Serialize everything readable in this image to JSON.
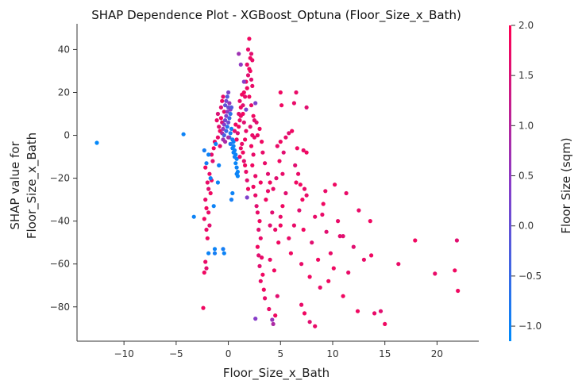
{
  "chart_data": {
    "type": "scatter",
    "title": "SHAP Dependence Plot - XGBoost_Optuna (Floor_Size_x_Bath)",
    "xlabel": "Floor_Size_x_Bath",
    "ylabel": [
      "SHAP value for",
      "Floor_Size_x_Bath"
    ],
    "xlim": [
      -14.5,
      24
    ],
    "ylim": [
      -96,
      52
    ],
    "xticks": [
      -10,
      -5,
      0,
      5,
      10,
      15,
      20
    ],
    "yticks": [
      -80,
      -60,
      -40,
      -20,
      0,
      20,
      40
    ],
    "colorbar": {
      "label": "Floor Size (sqm)",
      "min": -1.15,
      "max": 2.0,
      "ticks": [
        2.0,
        1.5,
        1.0,
        0.5,
        0.0,
        -0.5,
        -1.0
      ],
      "tick_labels": [
        "2.0",
        "1.5",
        "1.0",
        "0.5",
        "0.0",
        "−0.5",
        "−1.0"
      ],
      "low_color": "#008bfb",
      "high_color": "#ff0052"
    },
    "points": [
      [
        -12.6,
        -3.5,
        -1.1
      ],
      [
        -4.3,
        0.5,
        -1.0
      ],
      [
        -3.3,
        -38,
        -1.0
      ],
      [
        -1.9,
        -55,
        -1.0
      ],
      [
        -2.4,
        -80.5,
        1.8
      ],
      [
        -2.3,
        -64,
        1.8
      ],
      [
        -2.1,
        -62,
        1.6
      ],
      [
        -2.2,
        -59,
        1.7
      ],
      [
        -2.0,
        -48,
        1.8
      ],
      [
        -2.1,
        -44,
        1.7
      ],
      [
        -1.8,
        -42,
        1.6
      ],
      [
        -2.3,
        -39,
        1.8
      ],
      [
        -1.9,
        -36,
        1.7
      ],
      [
        -2.1,
        -34,
        1.8
      ],
      [
        -2.2,
        -30,
        1.7
      ],
      [
        -1.7,
        -27,
        1.8
      ],
      [
        -1.9,
        -25,
        1.6
      ],
      [
        -2.0,
        -22,
        1.7
      ],
      [
        -1.6,
        -21,
        1.8
      ],
      [
        -1.8,
        -18,
        1.7
      ],
      [
        -2.2,
        -15,
        1.8
      ],
      [
        -1.5,
        -12,
        1.6
      ],
      [
        -1.6,
        -9,
        1.7
      ],
      [
        -1.4,
        -6,
        1.8
      ],
      [
        -1.3,
        -3,
        1.7
      ],
      [
        -2.1,
        -13,
        -0.9
      ],
      [
        -1.9,
        -9,
        -1.0
      ],
      [
        -2.3,
        -7,
        -0.9
      ],
      [
        -1.2,
        -4,
        -1.0
      ],
      [
        -1.7,
        -20,
        -0.95
      ],
      [
        -1.4,
        -33,
        -1.0
      ],
      [
        -1.3,
        -53,
        -1.0
      ],
      [
        -1.3,
        -55,
        -0.9
      ],
      [
        -1.0,
        -22,
        -1.0
      ],
      [
        -0.9,
        -14,
        -1.0
      ],
      [
        -1.0,
        10,
        1.5
      ],
      [
        -1.1,
        7,
        1.7
      ],
      [
        -0.9,
        4,
        1.6
      ],
      [
        -0.8,
        2,
        1.8
      ],
      [
        -1.0,
        -1,
        1.7
      ],
      [
        -0.7,
        13,
        1.6
      ],
      [
        -0.6,
        16,
        1.8
      ],
      [
        -0.5,
        18,
        1.7
      ],
      [
        -0.6,
        6,
        1.5
      ],
      [
        -0.8,
        -5,
        1.6
      ],
      [
        -0.7,
        8,
        1.8
      ],
      [
        -0.4,
        11,
        1.7
      ],
      [
        -0.6,
        1,
        0.9
      ],
      [
        -0.5,
        3,
        0.6
      ],
      [
        -0.4,
        5,
        0.4
      ],
      [
        -0.3,
        7,
        0.2
      ],
      [
        -0.2,
        9,
        0.3
      ],
      [
        -0.1,
        11,
        0.5
      ],
      [
        0.0,
        13,
        0.1
      ],
      [
        -0.3,
        14,
        0.0
      ],
      [
        -0.2,
        16,
        0.2
      ],
      [
        -0.1,
        18,
        -0.2
      ],
      [
        0.0,
        20,
        0.3
      ],
      [
        0.1,
        15,
        0.6
      ],
      [
        0.2,
        12,
        0.4
      ],
      [
        0.0,
        6,
        0.1
      ],
      [
        -0.4,
        0,
        -0.3
      ],
      [
        -0.2,
        2,
        -0.5
      ],
      [
        -0.1,
        4,
        -0.7
      ],
      [
        0.1,
        8,
        -0.4
      ],
      [
        0.2,
        10,
        -0.6
      ],
      [
        0.3,
        13,
        -0.2
      ],
      [
        0.1,
        -1,
        -0.8
      ],
      [
        0.2,
        1,
        -0.9
      ],
      [
        0.3,
        3,
        -1.0
      ],
      [
        0.4,
        -2,
        -0.9
      ],
      [
        0.2,
        -4,
        -0.8
      ],
      [
        0.5,
        -3,
        -1.0
      ],
      [
        -0.5,
        -2,
        0.7
      ],
      [
        -0.3,
        -3,
        0.9
      ],
      [
        0.0,
        -1,
        0.8
      ],
      [
        0.5,
        -5,
        -1.0
      ],
      [
        0.6,
        -7,
        -1.0
      ],
      [
        0.7,
        -9,
        -1.05
      ],
      [
        0.8,
        -11,
        -1.0
      ],
      [
        0.7,
        -13,
        -1.05
      ],
      [
        0.8,
        -15,
        -1.0
      ],
      [
        0.9,
        -17,
        -1.05
      ],
      [
        0.8,
        -18,
        -1.0
      ],
      [
        0.6,
        -10,
        -0.95
      ],
      [
        0.5,
        -8,
        -1.0
      ],
      [
        0.4,
        -6,
        -1.0
      ],
      [
        0.9,
        -19,
        -1.05
      ],
      [
        0.3,
        -30,
        -0.9
      ],
      [
        0.4,
        -27,
        -1.0
      ],
      [
        -0.4,
        -55,
        -1.0
      ],
      [
        -0.5,
        -53,
        -0.9
      ],
      [
        0.6,
        2,
        1.6
      ],
      [
        0.7,
        5,
        1.8
      ],
      [
        0.8,
        -2,
        1.7
      ],
      [
        0.9,
        1,
        1.5
      ],
      [
        1.0,
        4,
        1.8
      ],
      [
        1.1,
        7,
        1.7
      ],
      [
        1.0,
        10,
        1.6
      ],
      [
        1.2,
        13,
        1.8
      ],
      [
        1.1,
        16,
        1.7
      ],
      [
        1.3,
        19,
        1.8
      ],
      [
        1.4,
        14,
        1.6
      ],
      [
        1.2,
        9,
        1.7
      ],
      [
        1.5,
        20,
        1.8
      ],
      [
        1.3,
        -4,
        1.7
      ],
      [
        1.4,
        -8,
        1.8
      ],
      [
        1.5,
        -12,
        1.6
      ],
      [
        1.2,
        -6,
        1.7
      ],
      [
        1.6,
        -2,
        1.8
      ],
      [
        1.7,
        2,
        1.7
      ],
      [
        1.5,
        6,
        1.6
      ],
      [
        1.4,
        10,
        1.8
      ],
      [
        1.1,
        -10,
        1.7
      ],
      [
        1.6,
        -14,
        1.8
      ],
      [
        1.7,
        -17,
        1.7
      ],
      [
        1.8,
        -21,
        1.6
      ],
      [
        1.9,
        -25,
        1.8
      ],
      [
        1.6,
        18,
        1.7
      ],
      [
        1.8,
        22,
        1.8
      ],
      [
        1.7,
        25,
        1.7
      ],
      [
        1.9,
        28,
        1.6
      ],
      [
        2.0,
        31,
        1.8
      ],
      [
        1.8,
        33,
        1.7
      ],
      [
        2.1,
        36,
        1.8
      ],
      [
        1.9,
        40,
        1.7
      ],
      [
        2.2,
        38,
        1.6
      ],
      [
        2.0,
        45,
        1.8
      ],
      [
        2.3,
        35,
        1.7
      ],
      [
        2.1,
        30,
        1.8
      ],
      [
        2.2,
        26,
        1.6
      ],
      [
        2.3,
        23,
        1.7
      ],
      [
        2.0,
        18,
        1.8
      ],
      [
        2.2,
        14,
        1.7
      ],
      [
        2.4,
        9,
        1.8
      ],
      [
        2.1,
        4,
        1.6
      ],
      [
        2.3,
        0,
        1.7
      ],
      [
        2.2,
        -5,
        1.8
      ],
      [
        2.4,
        -9,
        1.7
      ],
      [
        2.3,
        -14,
        1.8
      ],
      [
        2.5,
        7,
        1.6
      ],
      [
        2.6,
        -19,
        1.7
      ],
      [
        2.4,
        -24,
        1.8
      ],
      [
        2.6,
        -28,
        1.7
      ],
      [
        2.7,
        -33,
        1.6
      ],
      [
        2.5,
        -1,
        1.7
      ],
      [
        1.0,
        38,
        0.7
      ],
      [
        1.5,
        25,
        0.4
      ],
      [
        1.7,
        12,
        0.2
      ],
      [
        1.2,
        33,
        0.5
      ],
      [
        1.8,
        -29,
        0.3
      ],
      [
        2.6,
        -85.5,
        0.4
      ],
      [
        2.8,
        -36,
        1.7
      ],
      [
        3.0,
        -40,
        1.8
      ],
      [
        2.9,
        -44,
        1.6
      ],
      [
        3.1,
        -48,
        1.7
      ],
      [
        2.8,
        -52,
        1.8
      ],
      [
        3.2,
        -57,
        1.7
      ],
      [
        3.0,
        -61,
        1.6
      ],
      [
        3.3,
        -65,
        1.8
      ],
      [
        3.1,
        -68,
        1.7
      ],
      [
        3.4,
        -72,
        1.8
      ],
      [
        3.5,
        -76,
        1.7
      ],
      [
        2.9,
        -56,
        1.6
      ],
      [
        3.6,
        -30,
        1.8
      ],
      [
        3.8,
        -26,
        1.7
      ],
      [
        4.0,
        -22,
        1.8
      ],
      [
        4.2,
        -36,
        1.6
      ],
      [
        4.5,
        -44,
        1.7
      ],
      [
        4.8,
        -50,
        1.8
      ],
      [
        5.0,
        -38,
        1.7
      ],
      [
        5.2,
        -33,
        1.8
      ],
      [
        5.5,
        -27,
        1.6
      ],
      [
        5.8,
        -48,
        1.7
      ],
      [
        6.0,
        -55,
        1.8
      ],
      [
        6.3,
        -42,
        1.7
      ],
      [
        6.5,
        -22,
        1.8
      ],
      [
        6.8,
        -35,
        1.6
      ],
      [
        7.0,
        -60,
        1.7
      ],
      [
        7.2,
        -44,
        1.8
      ],
      [
        7.5,
        -28,
        1.7
      ],
      [
        7.8,
        -66,
        1.8
      ],
      [
        8.0,
        -50,
        1.6
      ],
      [
        8.3,
        -38,
        1.7
      ],
      [
        8.6,
        -58,
        1.8
      ],
      [
        8.8,
        -71,
        1.7
      ],
      [
        9.1,
        -32,
        1.8
      ],
      [
        9.4,
        -45,
        1.6
      ],
      [
        9.8,
        -55,
        1.7
      ],
      [
        10.1,
        -62,
        1.8
      ],
      [
        10.5,
        -40,
        1.7
      ],
      [
        11.0,
        -75,
        1.8
      ],
      [
        11.5,
        -64,
        1.7
      ],
      [
        12.0,
        -52,
        1.6
      ],
      [
        12.4,
        -82,
        1.8
      ],
      [
        13.0,
        -58,
        1.7
      ],
      [
        13.6,
        -40,
        1.8
      ],
      [
        14.0,
        -83,
        1.7
      ],
      [
        14.6,
        -82,
        1.6
      ],
      [
        15.0,
        -88,
        1.8
      ],
      [
        16.3,
        -60,
        1.7
      ],
      [
        17.9,
        -49,
        1.8
      ],
      [
        19.8,
        -64.5,
        1.7
      ],
      [
        21.7,
        -63,
        1.8
      ],
      [
        21.9,
        -49,
        1.6
      ],
      [
        22.0,
        -72.5,
        1.8
      ],
      [
        7.0,
        -79,
        1.7
      ],
      [
        7.3,
        -83,
        1.8
      ],
      [
        8.3,
        -89,
        1.7
      ],
      [
        7.8,
        -87,
        1.6
      ],
      [
        5.0,
        -42,
        1.8
      ],
      [
        4.0,
        -58,
        1.7
      ],
      [
        4.4,
        -63,
        1.8
      ],
      [
        4.7,
        -75,
        1.6
      ],
      [
        3.9,
        -81,
        1.7
      ],
      [
        4.5,
        -84,
        1.8
      ],
      [
        4.2,
        -86,
        0.6
      ],
      [
        4.3,
        -88,
        0.9
      ],
      [
        5.0,
        20,
        1.8
      ],
      [
        6.5,
        20,
        1.7
      ],
      [
        7.5,
        13,
        1.6
      ],
      [
        5.1,
        14,
        1.8
      ],
      [
        6.3,
        15,
        1.7
      ],
      [
        6.1,
        2,
        1.8
      ],
      [
        5.8,
        1,
        1.6
      ],
      [
        5.5,
        -1,
        1.7
      ],
      [
        5.0,
        -3,
        1.8
      ],
      [
        4.7,
        -5,
        1.7
      ],
      [
        5.3,
        -8,
        1.6
      ],
      [
        6.6,
        -6,
        1.8
      ],
      [
        7.2,
        -7,
        1.7
      ],
      [
        7.5,
        -8,
        1.8
      ],
      [
        6.4,
        -14,
        1.6
      ],
      [
        6.7,
        -18,
        1.7
      ],
      [
        4.9,
        -12,
        1.8
      ],
      [
        5.2,
        -18,
        1.7
      ],
      [
        4.6,
        -20,
        1.6
      ],
      [
        4.3,
        -25,
        1.7
      ],
      [
        6.9,
        -23,
        1.8
      ],
      [
        7.3,
        -25,
        1.7
      ],
      [
        7.1,
        -30,
        1.8
      ],
      [
        3.8,
        -18,
        1.6
      ],
      [
        3.5,
        -13,
        1.7
      ],
      [
        3.2,
        -3,
        1.8
      ],
      [
        2.6,
        15,
        0.3
      ],
      [
        2.8,
        0,
        1.7
      ],
      [
        2.7,
        6,
        1.6
      ],
      [
        3.0,
        3,
        1.8
      ],
      [
        3.3,
        -8,
        1.7
      ],
      [
        3.1,
        -22,
        1.8
      ],
      [
        4.0,
        -42,
        1.6
      ],
      [
        9.3,
        -26,
        1.7
      ],
      [
        10.2,
        -23,
        1.8
      ],
      [
        11.3,
        -27,
        1.7
      ],
      [
        11.0,
        -47,
        1.6
      ],
      [
        12.5,
        -35,
        1.7
      ],
      [
        13.7,
        -56,
        1.8
      ],
      [
        9.0,
        -37,
        1.7
      ],
      [
        9.6,
        -68,
        1.8
      ],
      [
        10.7,
        -47,
        1.6
      ]
    ]
  }
}
